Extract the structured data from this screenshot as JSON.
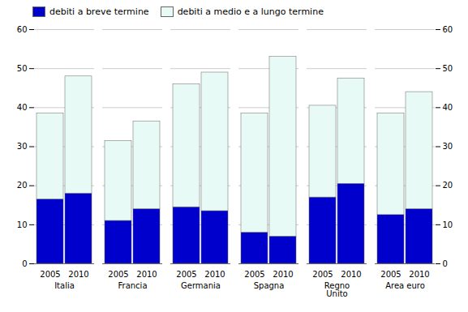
{
  "chart_data": {
    "type": "bar",
    "stacked": true,
    "categories": [
      "2005",
      "2010",
      "2005",
      "2010",
      "2005",
      "2010",
      "2005",
      "2010",
      "2005",
      "2010",
      "2005",
      "2010"
    ],
    "groups": [
      "Italia",
      "Francia",
      "Germania",
      "Spagna",
      "Regno\nUnito",
      "Area euro"
    ],
    "series": [
      {
        "name": "debiti a breve termine",
        "color": "#0000cc",
        "values": [
          16.5,
          18.0,
          11.0,
          14.0,
          14.5,
          13.5,
          8.0,
          7.0,
          17.0,
          20.5,
          12.5,
          14.0
        ]
      },
      {
        "name": "debiti a medio e a lungo termine",
        "color": "#e8faf5",
        "values": [
          22.0,
          30.0,
          20.5,
          22.5,
          31.5,
          35.5,
          30.5,
          46.0,
          23.5,
          27.0,
          26.0,
          30.0
        ]
      }
    ],
    "ylim": [
      0,
      60
    ],
    "yticks": [
      0,
      10,
      20,
      30,
      40,
      50,
      60
    ],
    "y2lim": [
      0,
      60
    ],
    "y2ticks": [
      0,
      10,
      20,
      30,
      40,
      50,
      60
    ],
    "grid": true,
    "legend": "upper left"
  }
}
